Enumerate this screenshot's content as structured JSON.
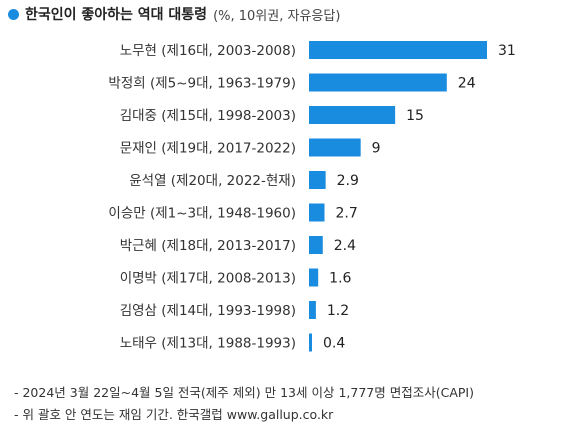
{
  "header": {
    "title": "한국인이 좋아하는 역대 대통령",
    "subtitle": "(%, 10위권, 자유응답)",
    "accent": "#1a8ce0"
  },
  "chart_data": {
    "type": "bar",
    "orientation": "horizontal",
    "title": "한국인이 좋아하는 역대 대통령",
    "subtitle": "(%, 10위권, 자유응답)",
    "categories": [
      "노무현 (제16대, 2003-2008)",
      "박정희 (제5~9대, 1963-1979)",
      "김대중 (제15대, 1998-2003)",
      "문재인 (제19대, 2017-2022)",
      "윤석열 (제20대, 2022-현재)",
      "이승만 (제1~3대, 1948-1960)",
      "박근혜 (제18대, 2013-2017)",
      "이명박 (제17대, 2008-2013)",
      "김영삼 (제14대, 1993-1998)",
      "노태우 (제13대, 1988-1993)"
    ],
    "values": [
      31,
      24,
      15,
      9,
      2.9,
      2.7,
      2.4,
      1.6,
      1.2,
      0.4
    ],
    "value_labels": [
      "31",
      "24",
      "15",
      "9",
      "2.9",
      "2.7",
      "2.4",
      "1.6",
      "1.2",
      "0.4"
    ],
    "xlim": [
      0,
      31
    ],
    "bar_color": "#1a8ce0",
    "grid": false,
    "legend": "none"
  },
  "footer": {
    "note1": "- 2024년 3월 22일~4월 5일 전국(제주 제외) 만 13세 이상 1,777명 면접조사(CAPI)",
    "note2": "- 위 괄호 안 연도는 재임 기간. 한국갤럽 www.gallup.co.kr"
  }
}
